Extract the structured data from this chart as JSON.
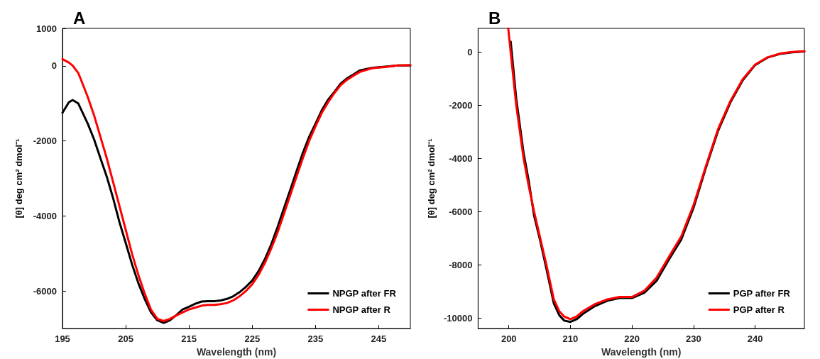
{
  "chart_data": [
    {
      "type": "line",
      "title": "A",
      "xlabel": "Wavelength (nm)",
      "ylabel": "[θ] deg cm² dmol⁻¹",
      "xlim": [
        195,
        250
      ],
      "xticks": [
        195,
        205,
        215,
        225,
        235,
        245
      ],
      "ylim": [
        -7000,
        1000
      ],
      "yticks": [
        -6000,
        -4000,
        -2000,
        0,
        1000
      ],
      "grid": false,
      "legend": "bottom right",
      "marker": "none",
      "line_style": "solid",
      "x": [
        195,
        196,
        196.6,
        197.5,
        198,
        199,
        200,
        201,
        202,
        203,
        204,
        205,
        206,
        207,
        208,
        209,
        210,
        211,
        212,
        213,
        214,
        215,
        216,
        217,
        218,
        219,
        220,
        221,
        222,
        223,
        224,
        225,
        226,
        227,
        228,
        229,
        230,
        231,
        232,
        233,
        234,
        235,
        236,
        237,
        238,
        239,
        240,
        241,
        242,
        244,
        246,
        248,
        250
      ],
      "series": [
        {
          "name": "NPGP after FR",
          "color": "#000000",
          "values": [
            -1250,
            -970,
            -910,
            -1000,
            -1180,
            -1540,
            -1960,
            -2460,
            -2950,
            -3520,
            -4160,
            -4720,
            -5290,
            -5790,
            -6210,
            -6570,
            -6780,
            -6850,
            -6780,
            -6640,
            -6490,
            -6420,
            -6340,
            -6280,
            -6270,
            -6270,
            -6250,
            -6210,
            -6140,
            -6030,
            -5890,
            -5720,
            -5470,
            -5150,
            -4760,
            -4300,
            -3800,
            -3310,
            -2810,
            -2320,
            -1890,
            -1540,
            -1180,
            -900,
            -690,
            -470,
            -330,
            -230,
            -120,
            -50,
            -20,
            10,
            10
          ]
        },
        {
          "name": "NPGP after R",
          "color": "#ff0000",
          "values": [
            180,
            90,
            10,
            -190,
            -400,
            -830,
            -1320,
            -1890,
            -2460,
            -3090,
            -3730,
            -4370,
            -5010,
            -5570,
            -6070,
            -6500,
            -6740,
            -6800,
            -6740,
            -6650,
            -6570,
            -6490,
            -6440,
            -6390,
            -6370,
            -6370,
            -6350,
            -6320,
            -6250,
            -6140,
            -6000,
            -5820,
            -5570,
            -5250,
            -4870,
            -4440,
            -3950,
            -3450,
            -2950,
            -2460,
            -2000,
            -1610,
            -1250,
            -970,
            -720,
            -510,
            -370,
            -260,
            -160,
            -60,
            -30,
            10,
            20
          ]
        }
      ]
    },
    {
      "type": "line",
      "title": "B",
      "xlabel": "Wavelength (nm)",
      "ylabel": "[θ] deg cm² dmol⁻¹",
      "xlim": [
        195,
        248
      ],
      "xticks": [
        200,
        210,
        220,
        230,
        240
      ],
      "ylim": [
        -10400,
        900
      ],
      "yticks": [
        -10000,
        -8000,
        -6000,
        -4000,
        -2000,
        0
      ],
      "grid": false,
      "legend": "bottom right",
      "marker": "none",
      "line_style": "solid",
      "x": [
        199.9,
        200.3,
        201.2,
        202.4,
        203.2,
        204.1,
        205.1,
        206.1,
        207.3,
        208.2,
        209,
        210,
        211,
        212,
        214,
        216,
        218,
        220,
        222,
        224,
        226,
        228,
        230,
        232,
        234,
        236,
        238,
        240,
        242,
        244,
        246,
        248
      ],
      "series": [
        {
          "name": "PGP after FR",
          "color": "#000000",
          "values": [
            null,
            400,
            -1750,
            -3800,
            -4800,
            -6150,
            -7100,
            -8150,
            -9450,
            -9900,
            -10100,
            -10150,
            -10050,
            -9850,
            -9550,
            -9350,
            -9250,
            -9250,
            -9050,
            -8600,
            -7800,
            -7050,
            -5850,
            -4350,
            -2950,
            -1880,
            -1050,
            -480,
            -200,
            -60,
            0,
            30
          ]
        },
        {
          "name": "PGP after R",
          "color": "#ff0000",
          "values": [
            900,
            0,
            -2000,
            -4000,
            -5000,
            -6000,
            -7000,
            -8000,
            -9300,
            -9750,
            -9950,
            -10050,
            -9950,
            -9750,
            -9480,
            -9300,
            -9210,
            -9210,
            -8980,
            -8480,
            -7700,
            -6930,
            -5750,
            -4290,
            -2880,
            -1830,
            -1010,
            -460,
            -190,
            -50,
            10,
            40
          ]
        }
      ]
    }
  ]
}
